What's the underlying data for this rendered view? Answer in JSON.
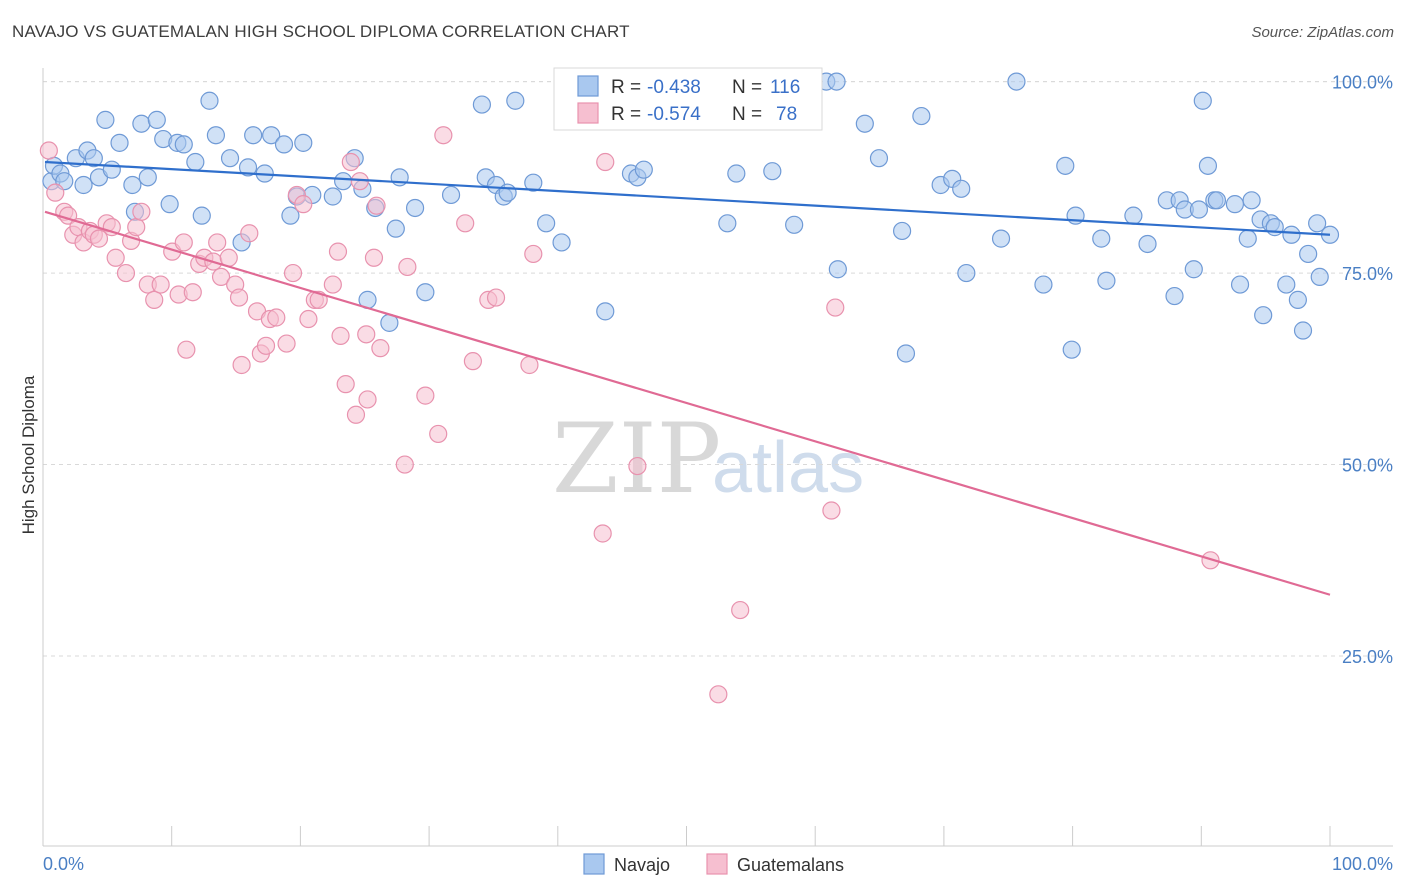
{
  "header": {
    "title": "NAVAJO VS GUATEMALAN HIGH SCHOOL DIPLOMA CORRELATION CHART",
    "source": "Source: ZipAtlas.com"
  },
  "watermark": {
    "zip": "ZIP",
    "atlas": "atlas"
  },
  "legend": {
    "rows": [
      {
        "r_label": "R =",
        "r_value": "-0.438",
        "n_label": "N =",
        "n_value": "116"
      },
      {
        "r_label": "R =",
        "r_value": "-0.574",
        "n_label": "N =",
        "n_value": "78"
      }
    ]
  },
  "bottom_legend": {
    "items": [
      "Navajo",
      "Guatemalans"
    ]
  },
  "colors": {
    "navajo_fill": "#a9c8ef",
    "navajo_stroke": "#6f9ad6",
    "navajo_line": "#2f6fcc",
    "guat_fill": "#f6bfd0",
    "guat_stroke": "#e892ae",
    "guat_line": "#e06a94",
    "tick_text": "#4a7fc4",
    "grid": "#d9d9d9"
  },
  "chart_data": {
    "type": "scatter",
    "title": "NAVAJO VS GUATEMALAN HIGH SCHOOL DIPLOMA CORRELATION CHART",
    "xlabel": "",
    "ylabel": "High School Diploma",
    "xlim": [
      0,
      100
    ],
    "ylim": [
      0,
      103
    ],
    "x_tick_labels": [
      "0.0%",
      "100.0%"
    ],
    "y_ticks": [
      25,
      50,
      75,
      100
    ],
    "y_tick_labels": [
      "25.0%",
      "50.0%",
      "75.0%",
      "100.0%"
    ],
    "grid": "horizontal dashed",
    "legend_position": "top-center",
    "series": [
      {
        "name": "Navajo",
        "r": -0.438,
        "n": 116,
        "trend": {
          "x0": 0,
          "y0": 89.5,
          "x1": 100,
          "y1": 80.0
        },
        "points": [
          [
            0.5,
            87
          ],
          [
            0.7,
            89
          ],
          [
            1.2,
            88
          ],
          [
            1.5,
            87
          ],
          [
            2.4,
            90
          ],
          [
            3,
            86.5
          ],
          [
            3.3,
            91
          ],
          [
            3.8,
            90
          ],
          [
            4.2,
            87.5
          ],
          [
            4.7,
            95
          ],
          [
            5.2,
            88.5
          ],
          [
            5.8,
            92
          ],
          [
            6.8,
            86.5
          ],
          [
            7,
            83
          ],
          [
            7.5,
            94.5
          ],
          [
            8,
            87.5
          ],
          [
            8.7,
            95
          ],
          [
            9.2,
            92.5
          ],
          [
            9.7,
            84
          ],
          [
            10.3,
            92
          ],
          [
            10.8,
            91.8
          ],
          [
            11.7,
            89.5
          ],
          [
            12.2,
            82.5
          ],
          [
            12.8,
            97.5
          ],
          [
            13.3,
            93
          ],
          [
            14.4,
            90
          ],
          [
            15.3,
            79
          ],
          [
            15.8,
            88.8
          ],
          [
            16.2,
            93
          ],
          [
            17.1,
            88
          ],
          [
            17.6,
            93
          ],
          [
            18.6,
            91.8
          ],
          [
            19.1,
            82.5
          ],
          [
            19.6,
            85
          ],
          [
            20.1,
            92
          ],
          [
            20.8,
            85.2
          ],
          [
            22.4,
            85
          ],
          [
            23.2,
            87
          ],
          [
            24.1,
            90
          ],
          [
            24.7,
            86
          ],
          [
            25.1,
            71.5
          ],
          [
            25.7,
            83.5
          ],
          [
            26.8,
            68.5
          ],
          [
            27.3,
            80.8
          ],
          [
            27.6,
            87.5
          ],
          [
            28.8,
            83.5
          ],
          [
            29.6,
            72.5
          ],
          [
            31.6,
            85.2
          ],
          [
            34,
            97
          ],
          [
            34.3,
            87.5
          ],
          [
            35.1,
            86.5
          ],
          [
            35.7,
            85
          ],
          [
            36,
            85.5
          ],
          [
            36.6,
            97.5
          ],
          [
            38,
            86.8
          ],
          [
            39,
            81.5
          ],
          [
            40.2,
            79
          ],
          [
            43.6,
            70
          ],
          [
            45.6,
            88
          ],
          [
            46.1,
            87.5
          ],
          [
            46.6,
            88.5
          ],
          [
            52.4,
            100
          ],
          [
            53.1,
            81.5
          ],
          [
            53.8,
            88
          ],
          [
            56.6,
            88.3
          ],
          [
            58.3,
            81.3
          ],
          [
            60.8,
            100
          ],
          [
            61.6,
            100
          ],
          [
            61.7,
            75.5
          ],
          [
            63.8,
            94.5
          ],
          [
            64.9,
            90
          ],
          [
            66.7,
            80.5
          ],
          [
            67,
            64.5
          ],
          [
            68.2,
            95.5
          ],
          [
            69.7,
            86.5
          ],
          [
            70.6,
            87.3
          ],
          [
            71.3,
            86
          ],
          [
            71.7,
            75
          ],
          [
            74.4,
            79.5
          ],
          [
            75.6,
            100
          ],
          [
            77.7,
            73.5
          ],
          [
            79.4,
            89
          ],
          [
            79.9,
            65
          ],
          [
            80.2,
            82.5
          ],
          [
            82.2,
            79.5
          ],
          [
            82.6,
            74
          ],
          [
            84.7,
            82.5
          ],
          [
            85.8,
            78.8
          ],
          [
            87.3,
            84.5
          ],
          [
            87.9,
            72
          ],
          [
            88.3,
            84.5
          ],
          [
            88.7,
            83.3
          ],
          [
            89.4,
            75.5
          ],
          [
            89.8,
            83.3
          ],
          [
            90.1,
            97.5
          ],
          [
            90.5,
            89
          ],
          [
            91,
            84.5
          ],
          [
            91.2,
            84.5
          ],
          [
            92.6,
            84
          ],
          [
            93,
            73.5
          ],
          [
            93.6,
            79.5
          ],
          [
            93.9,
            84.5
          ],
          [
            94.6,
            82
          ],
          [
            94.8,
            69.5
          ],
          [
            95.4,
            81.5
          ],
          [
            95.7,
            81
          ],
          [
            96.6,
            73.5
          ],
          [
            97,
            80
          ],
          [
            97.5,
            71.5
          ],
          [
            97.9,
            67.5
          ],
          [
            98.3,
            77.5
          ],
          [
            99,
            81.5
          ],
          [
            99.2,
            74.5
          ],
          [
            100,
            80
          ]
        ]
      },
      {
        "name": "Guatemalans",
        "r": -0.574,
        "n": 78,
        "trend": {
          "x0": 0,
          "y0": 83.0,
          "x1": 100,
          "y1": 33.0
        },
        "points": [
          [
            0.3,
            91
          ],
          [
            0.8,
            85.5
          ],
          [
            1.5,
            83
          ],
          [
            1.8,
            82.5
          ],
          [
            2.2,
            80
          ],
          [
            2.6,
            81
          ],
          [
            3,
            79
          ],
          [
            3.5,
            80.5
          ],
          [
            3.8,
            80
          ],
          [
            4.2,
            79.5
          ],
          [
            4.8,
            81.5
          ],
          [
            5.2,
            81
          ],
          [
            5.5,
            77
          ],
          [
            6.3,
            75
          ],
          [
            6.7,
            79.2
          ],
          [
            7.1,
            81
          ],
          [
            7.5,
            83
          ],
          [
            8,
            73.5
          ],
          [
            8.5,
            71.5
          ],
          [
            9,
            73.5
          ],
          [
            9.9,
            77.8
          ],
          [
            10.4,
            72.2
          ],
          [
            10.8,
            79
          ],
          [
            11,
            65
          ],
          [
            11.5,
            72.5
          ],
          [
            12,
            76.2
          ],
          [
            12.4,
            77
          ],
          [
            13.1,
            76.5
          ],
          [
            13.4,
            79
          ],
          [
            13.7,
            74.5
          ],
          [
            14.3,
            77
          ],
          [
            14.8,
            73.5
          ],
          [
            15.1,
            71.8
          ],
          [
            15.3,
            63
          ],
          [
            15.9,
            80.2
          ],
          [
            16.5,
            70
          ],
          [
            16.8,
            64.5
          ],
          [
            17.2,
            65.5
          ],
          [
            17.5,
            69
          ],
          [
            18,
            69.2
          ],
          [
            18.8,
            65.8
          ],
          [
            19.3,
            75
          ],
          [
            19.6,
            85.2
          ],
          [
            20.1,
            84
          ],
          [
            20.5,
            69
          ],
          [
            21,
            71.5
          ],
          [
            21.3,
            71.5
          ],
          [
            22.4,
            73.5
          ],
          [
            22.8,
            77.8
          ],
          [
            23,
            66.8
          ],
          [
            23.4,
            60.5
          ],
          [
            23.8,
            89.5
          ],
          [
            24.2,
            56.5
          ],
          [
            24.5,
            87
          ],
          [
            25,
            67
          ],
          [
            25.1,
            58.5
          ],
          [
            25.6,
            77
          ],
          [
            25.8,
            83.8
          ],
          [
            26.1,
            65.2
          ],
          [
            28,
            50
          ],
          [
            28.2,
            75.8
          ],
          [
            29.6,
            59
          ],
          [
            30.6,
            54
          ],
          [
            31,
            93
          ],
          [
            32.7,
            81.5
          ],
          [
            33.3,
            63.5
          ],
          [
            34.5,
            71.5
          ],
          [
            35.1,
            71.8
          ],
          [
            37.7,
            63
          ],
          [
            38,
            77.5
          ],
          [
            43.4,
            41
          ],
          [
            43.6,
            89.5
          ],
          [
            46.1,
            49.8
          ],
          [
            52.4,
            20
          ],
          [
            54.1,
            31
          ],
          [
            61.2,
            44
          ],
          [
            61.5,
            70.5
          ],
          [
            90.7,
            37.5
          ]
        ]
      }
    ]
  }
}
